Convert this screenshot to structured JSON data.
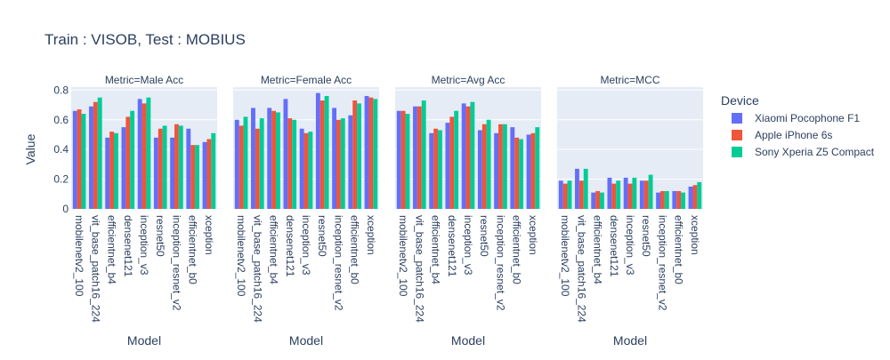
{
  "chart_data": {
    "type": "bar",
    "title": "Train : VISOB, Test : MOBIUS",
    "ylabel": "Value",
    "xlabel": "Model",
    "ylim": [
      0,
      0.82
    ],
    "yticks": [
      0,
      0.2,
      0.4,
      0.6,
      0.8
    ],
    "ytick_labels": [
      "0",
      "0.2",
      "0.4",
      "0.6",
      "0.8"
    ],
    "grid": true,
    "legend": {
      "title": "Device",
      "position": "right",
      "entries": [
        "Xiaomi Pocophone F1",
        "Apple iPhone 6s",
        "Sony Xperia Z5 Compact"
      ]
    },
    "colors": [
      "#636efa",
      "#EF553B",
      "#00cc96"
    ],
    "plot_background": "#E5ECF6",
    "categories": [
      "mobilenetv2_100",
      "vit_base_patch16_224",
      "efficientnet_b4",
      "densenet121",
      "inception_v3",
      "resnet50",
      "inception_resnet_v2",
      "efficientnet_b0",
      "xception"
    ],
    "panels": [
      {
        "title": "Metric=Male Acc",
        "series": [
          {
            "name": "Xiaomi Pocophone F1",
            "values": [
              0.66,
              0.69,
              0.48,
              0.55,
              0.74,
              0.48,
              0.48,
              0.54,
              0.45
            ]
          },
          {
            "name": "Apple iPhone 6s",
            "values": [
              0.67,
              0.72,
              0.52,
              0.62,
              0.71,
              0.54,
              0.57,
              0.43,
              0.47
            ]
          },
          {
            "name": "Sony Xperia Z5 Compact",
            "values": [
              0.64,
              0.75,
              0.51,
              0.66,
              0.75,
              0.56,
              0.56,
              0.43,
              0.51
            ]
          }
        ]
      },
      {
        "title": "Metric=Female Acc",
        "series": [
          {
            "name": "Xiaomi Pocophone F1",
            "values": [
              0.6,
              0.68,
              0.68,
              0.74,
              0.54,
              0.78,
              0.68,
              0.63,
              0.76
            ]
          },
          {
            "name": "Apple iPhone 6s",
            "values": [
              0.56,
              0.54,
              0.66,
              0.61,
              0.51,
              0.73,
              0.6,
              0.73,
              0.75
            ]
          },
          {
            "name": "Sony Xperia Z5 Compact",
            "values": [
              0.62,
              0.61,
              0.65,
              0.6,
              0.52,
              0.76,
              0.61,
              0.71,
              0.74
            ]
          }
        ]
      },
      {
        "title": "Metric=Avg Acc",
        "series": [
          {
            "name": "Xiaomi Pocophone F1",
            "values": [
              0.66,
              0.69,
              0.51,
              0.58,
              0.71,
              0.53,
              0.51,
              0.55,
              0.5
            ]
          },
          {
            "name": "Apple iPhone 6s",
            "values": [
              0.66,
              0.69,
              0.54,
              0.62,
              0.69,
              0.57,
              0.57,
              0.48,
              0.51
            ]
          },
          {
            "name": "Sony Xperia Z5 Compact",
            "values": [
              0.64,
              0.73,
              0.53,
              0.66,
              0.72,
              0.6,
              0.57,
              0.47,
              0.55
            ]
          }
        ]
      },
      {
        "title": "Metric=MCC",
        "series": [
          {
            "name": "Xiaomi Pocophone F1",
            "values": [
              0.19,
              0.27,
              0.11,
              0.21,
              0.21,
              0.19,
              0.11,
              0.12,
              0.15
            ]
          },
          {
            "name": "Apple iPhone 6s",
            "values": [
              0.17,
              0.19,
              0.12,
              0.17,
              0.17,
              0.19,
              0.12,
              0.12,
              0.16
            ]
          },
          {
            "name": "Sony Xperia Z5 Compact",
            "values": [
              0.19,
              0.27,
              0.11,
              0.19,
              0.21,
              0.23,
              0.12,
              0.11,
              0.18
            ]
          }
        ]
      }
    ]
  }
}
